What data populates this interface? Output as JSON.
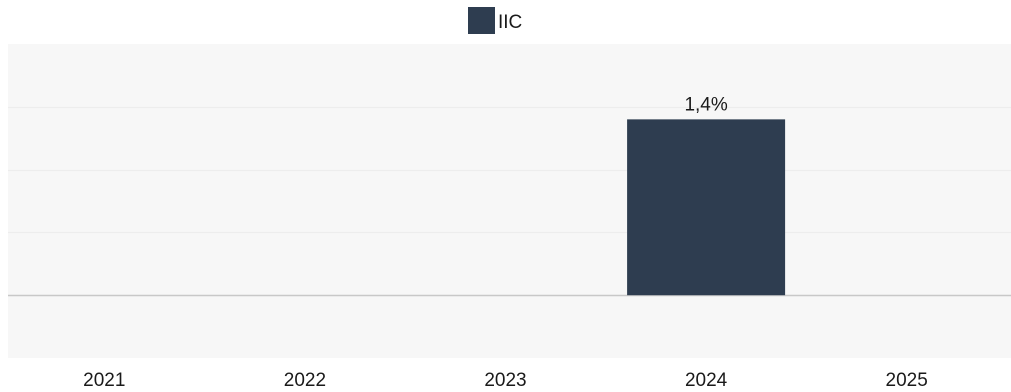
{
  "colors": {
    "plot_background": "#f7f7f7",
    "gridline": "#ededed",
    "baseline": "#c8c8c8",
    "series": "#2e3d50"
  },
  "chart_data": {
    "type": "bar",
    "categories": [
      "2021",
      "2022",
      "2023",
      "2024",
      "2025"
    ],
    "series": [
      {
        "name": "IIC",
        "values": [
          null,
          null,
          null,
          1.4,
          null
        ],
        "data_labels": [
          "",
          "",
          "",
          "1,4%",
          ""
        ]
      }
    ],
    "ylim": [
      -0.5,
      2.0
    ],
    "gridlines_y": [
      0.0,
      0.5,
      1.0,
      1.5
    ],
    "grid": true,
    "legend_position": "top-center"
  }
}
